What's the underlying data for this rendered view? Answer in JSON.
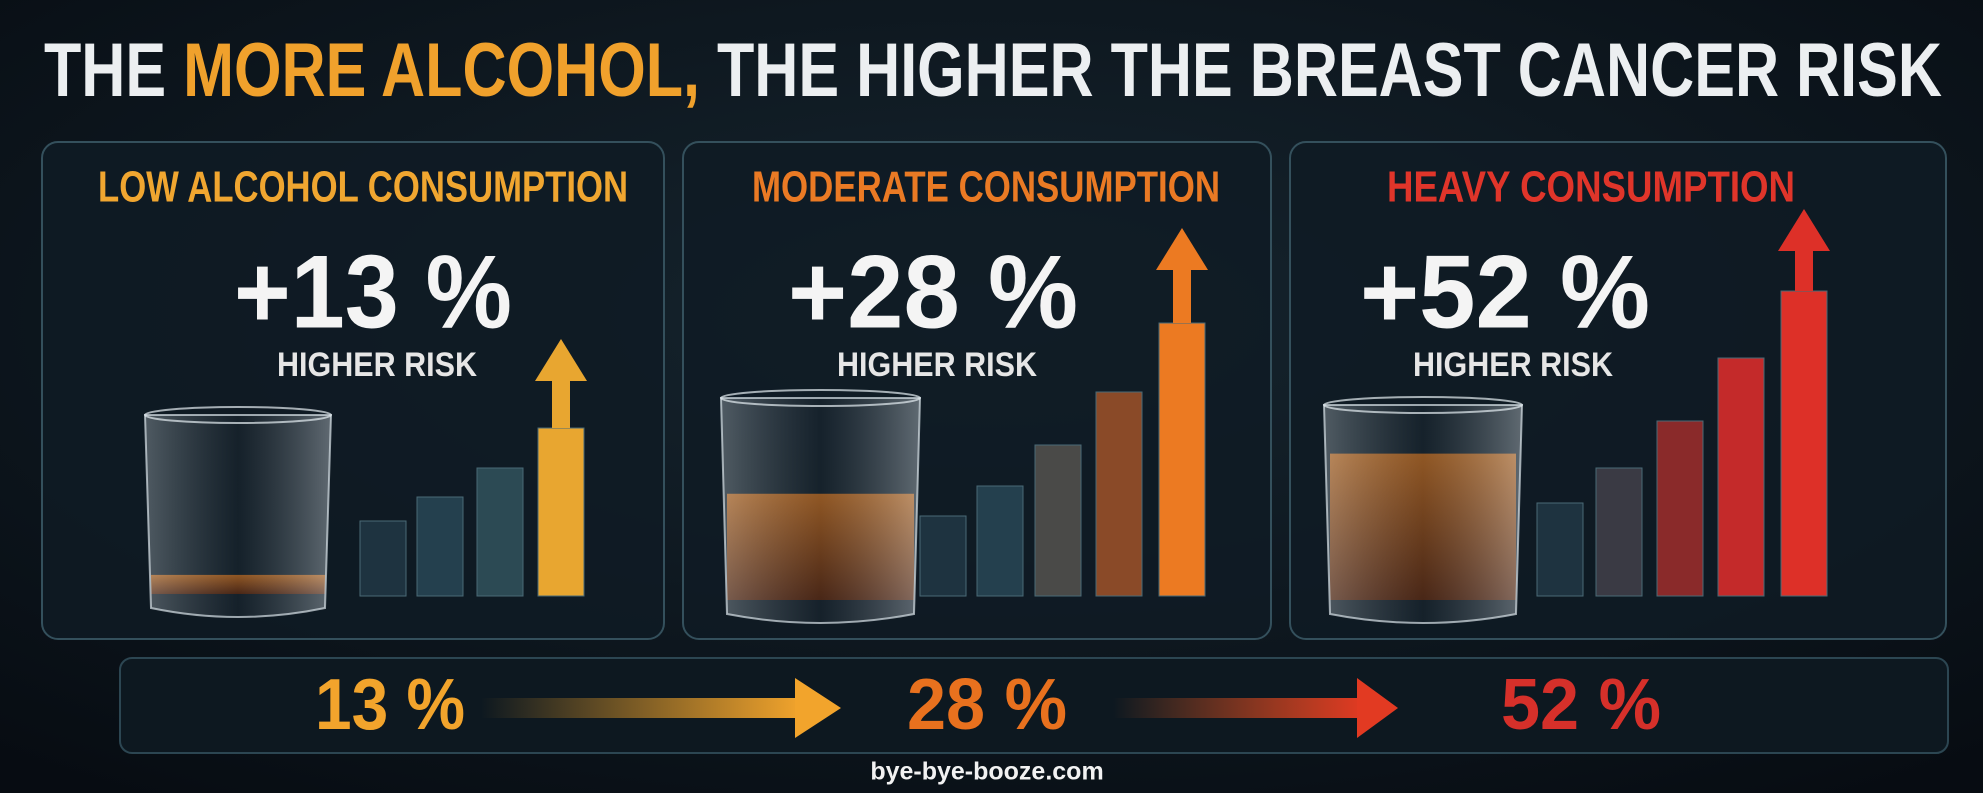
{
  "header": {
    "title_parts": [
      "THE",
      "MORE ALCOHOL,",
      "THE HIGHER THE BREAST CANCER RISK"
    ]
  },
  "panels": [
    {
      "heading": "LOW ALCOHOL CONSUMPTION",
      "value": "+13 %",
      "caption": "HIGHER RISK"
    },
    {
      "heading": "MODERATE CONSUMPTION",
      "value": "+28 %",
      "caption": "HIGHER RISK"
    },
    {
      "heading": "HEAVY CONSUMPTION",
      "value": "+52 %",
      "caption": "HIGHER RISK"
    }
  ],
  "progression": [
    "13 %",
    "28 %",
    "52 %"
  ],
  "footer": "bye-bye-booze.com"
}
